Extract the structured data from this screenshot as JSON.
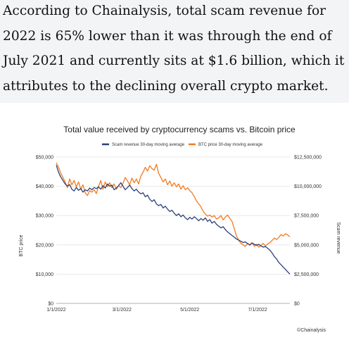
{
  "article": {
    "paragraph": "According to Chainalysis, total scam revenue for 2022 is 65% lower than it was through the end of July 2021 and currently sits at $1.6 billion, which it attributes to the declining overall crypto market."
  },
  "colors": {
    "scam": "#2d3f78",
    "btc": "#f47b20",
    "article_bg": "#f3f4f6"
  },
  "chart_data": {
    "type": "line",
    "title": "Total value received by cryptocurrency scams vs. Bitcoin price",
    "watermark": "©Chainalysis",
    "left_axis_label": "BTC price",
    "right_axis_label": "Scam revenue",
    "left_ticks": [
      "$0",
      "$10,000",
      "$20,000",
      "$30,000",
      "$40,000",
      "$50,000"
    ],
    "right_ticks": [
      "$0",
      "$2,500,000",
      "$5,000,000",
      "$7,500,000",
      "$10,000,000",
      "$12,500,000"
    ],
    "x_ticks": [
      "1/1/2022",
      "3/1/2022",
      "5/1/2022",
      "7/1/2022"
    ],
    "x_tick_days": [
      0,
      59,
      120,
      181
    ],
    "x_range_days": [
      0,
      210
    ],
    "left_range": [
      0,
      50000
    ],
    "right_range": [
      0,
      12500000
    ],
    "grid": true,
    "legend_position": "top-center",
    "series": [
      {
        "name": "Scam revenue 30-day moving average",
        "axis": "right",
        "points": [
          [
            0,
            11800000
          ],
          [
            2,
            11200000
          ],
          [
            4,
            10800000
          ],
          [
            6,
            10500000
          ],
          [
            8,
            10200000
          ],
          [
            10,
            10000000
          ],
          [
            12,
            10150000
          ],
          [
            14,
            9750000
          ],
          [
            16,
            9600000
          ],
          [
            18,
            9900000
          ],
          [
            20,
            9650000
          ],
          [
            22,
            9800000
          ],
          [
            24,
            9500000
          ],
          [
            26,
            9700000
          ],
          [
            28,
            9600000
          ],
          [
            30,
            9850000
          ],
          [
            32,
            9700000
          ],
          [
            34,
            9900000
          ],
          [
            36,
            9800000
          ],
          [
            38,
            9950000
          ],
          [
            40,
            9750000
          ],
          [
            42,
            10050000
          ],
          [
            44,
            9850000
          ],
          [
            46,
            10200000
          ],
          [
            48,
            10000000
          ],
          [
            50,
            10100000
          ],
          [
            52,
            9700000
          ],
          [
            54,
            9850000
          ],
          [
            56,
            10050000
          ],
          [
            58,
            10300000
          ],
          [
            60,
            10000000
          ],
          [
            62,
            9700000
          ],
          [
            64,
            9900000
          ],
          [
            66,
            10100000
          ],
          [
            68,
            9800000
          ],
          [
            70,
            9600000
          ],
          [
            72,
            9750000
          ],
          [
            74,
            9500000
          ],
          [
            76,
            9350000
          ],
          [
            78,
            9450000
          ],
          [
            80,
            9100000
          ],
          [
            82,
            9250000
          ],
          [
            84,
            8900000
          ],
          [
            86,
            8700000
          ],
          [
            88,
            8850000
          ],
          [
            90,
            8500000
          ],
          [
            92,
            8350000
          ],
          [
            94,
            8450000
          ],
          [
            96,
            8150000
          ],
          [
            98,
            8300000
          ],
          [
            100,
            8050000
          ],
          [
            102,
            7850000
          ],
          [
            104,
            7950000
          ],
          [
            106,
            7700000
          ],
          [
            108,
            7500000
          ],
          [
            110,
            7650000
          ],
          [
            112,
            7400000
          ],
          [
            114,
            7550000
          ],
          [
            116,
            7300000
          ],
          [
            118,
            7150000
          ],
          [
            120,
            7350000
          ],
          [
            122,
            7200000
          ],
          [
            124,
            7400000
          ],
          [
            126,
            7250000
          ],
          [
            128,
            7050000
          ],
          [
            130,
            7250000
          ],
          [
            132,
            7100000
          ],
          [
            134,
            7300000
          ],
          [
            136,
            7000000
          ],
          [
            138,
            7150000
          ],
          [
            140,
            6850000
          ],
          [
            142,
            7000000
          ],
          [
            144,
            6750000
          ],
          [
            146,
            6600000
          ],
          [
            148,
            6450000
          ],
          [
            150,
            6550000
          ],
          [
            152,
            6300000
          ],
          [
            154,
            6100000
          ],
          [
            156,
            5950000
          ],
          [
            158,
            5800000
          ],
          [
            160,
            5650000
          ],
          [
            162,
            5500000
          ],
          [
            164,
            5400000
          ],
          [
            166,
            5300000
          ],
          [
            168,
            5200000
          ],
          [
            170,
            5250000
          ],
          [
            172,
            5100000
          ],
          [
            174,
            5000000
          ],
          [
            176,
            5150000
          ],
          [
            178,
            5050000
          ],
          [
            180,
            4950000
          ],
          [
            182,
            5050000
          ],
          [
            184,
            4900000
          ],
          [
            186,
            4800000
          ],
          [
            188,
            4850000
          ],
          [
            190,
            4700000
          ],
          [
            192,
            4550000
          ],
          [
            194,
            4300000
          ],
          [
            196,
            4000000
          ],
          [
            198,
            3800000
          ],
          [
            200,
            3500000
          ],
          [
            202,
            3300000
          ],
          [
            204,
            3100000
          ],
          [
            206,
            2900000
          ],
          [
            208,
            2700000
          ],
          [
            210,
            2500000
          ]
        ]
      },
      {
        "name": "BTC price 30-day moving average",
        "axis": "left",
        "points": [
          [
            0,
            48000
          ],
          [
            2,
            46500
          ],
          [
            4,
            44500
          ],
          [
            6,
            43000
          ],
          [
            8,
            41500
          ],
          [
            10,
            39500
          ],
          [
            12,
            42500
          ],
          [
            14,
            40500
          ],
          [
            16,
            42000
          ],
          [
            18,
            39800
          ],
          [
            20,
            41500
          ],
          [
            22,
            39000
          ],
          [
            24,
            40500
          ],
          [
            26,
            37800
          ],
          [
            28,
            36800
          ],
          [
            30,
            38500
          ],
          [
            32,
            38000
          ],
          [
            34,
            38800
          ],
          [
            36,
            37500
          ],
          [
            38,
            40000
          ],
          [
            40,
            42000
          ],
          [
            42,
            39000
          ],
          [
            44,
            41500
          ],
          [
            46,
            39800
          ],
          [
            48,
            41200
          ],
          [
            50,
            39500
          ],
          [
            52,
            40800
          ],
          [
            54,
            39000
          ],
          [
            56,
            40200
          ],
          [
            58,
            39500
          ],
          [
            60,
            41000
          ],
          [
            62,
            43000
          ],
          [
            64,
            41800
          ],
          [
            66,
            40500
          ],
          [
            68,
            42800
          ],
          [
            70,
            41200
          ],
          [
            72,
            42500
          ],
          [
            74,
            40800
          ],
          [
            76,
            43500
          ],
          [
            78,
            44800
          ],
          [
            80,
            46500
          ],
          [
            82,
            45200
          ],
          [
            84,
            47000
          ],
          [
            86,
            46000
          ],
          [
            88,
            45500
          ],
          [
            90,
            47500
          ],
          [
            92,
            44500
          ],
          [
            94,
            43000
          ],
          [
            96,
            41500
          ],
          [
            98,
            42500
          ],
          [
            100,
            40500
          ],
          [
            102,
            41800
          ],
          [
            104,
            40000
          ],
          [
            106,
            41200
          ],
          [
            108,
            39800
          ],
          [
            110,
            40800
          ],
          [
            112,
            39000
          ],
          [
            114,
            40200
          ],
          [
            116,
            38800
          ],
          [
            118,
            39500
          ],
          [
            120,
            38500
          ],
          [
            122,
            37800
          ],
          [
            124,
            36500
          ],
          [
            126,
            35000
          ],
          [
            128,
            34000
          ],
          [
            130,
            33000
          ],
          [
            132,
            31500
          ],
          [
            134,
            30500
          ],
          [
            136,
            29800
          ],
          [
            138,
            30200
          ],
          [
            140,
            29500
          ],
          [
            142,
            30000
          ],
          [
            144,
            28800
          ],
          [
            146,
            29200
          ],
          [
            148,
            30000
          ],
          [
            150,
            28500
          ],
          [
            152,
            29500
          ],
          [
            154,
            30200
          ],
          [
            156,
            29000
          ],
          [
            158,
            28000
          ],
          [
            160,
            25500
          ],
          [
            162,
            23000
          ],
          [
            164,
            21500
          ],
          [
            166,
            20500
          ],
          [
            168,
            20000
          ],
          [
            170,
            19500
          ],
          [
            172,
            20500
          ],
          [
            174,
            19800
          ],
          [
            176,
            20800
          ],
          [
            178,
            19500
          ],
          [
            180,
            20200
          ],
          [
            182,
            19200
          ],
          [
            184,
            19800
          ],
          [
            186,
            20500
          ],
          [
            188,
            19600
          ],
          [
            190,
            20300
          ],
          [
            192,
            20800
          ],
          [
            194,
            21500
          ],
          [
            196,
            22300
          ],
          [
            198,
            21800
          ],
          [
            200,
            22500
          ],
          [
            202,
            23500
          ],
          [
            204,
            23000
          ],
          [
            206,
            23800
          ],
          [
            208,
            23400
          ],
          [
            210,
            22800
          ]
        ]
      }
    ]
  }
}
